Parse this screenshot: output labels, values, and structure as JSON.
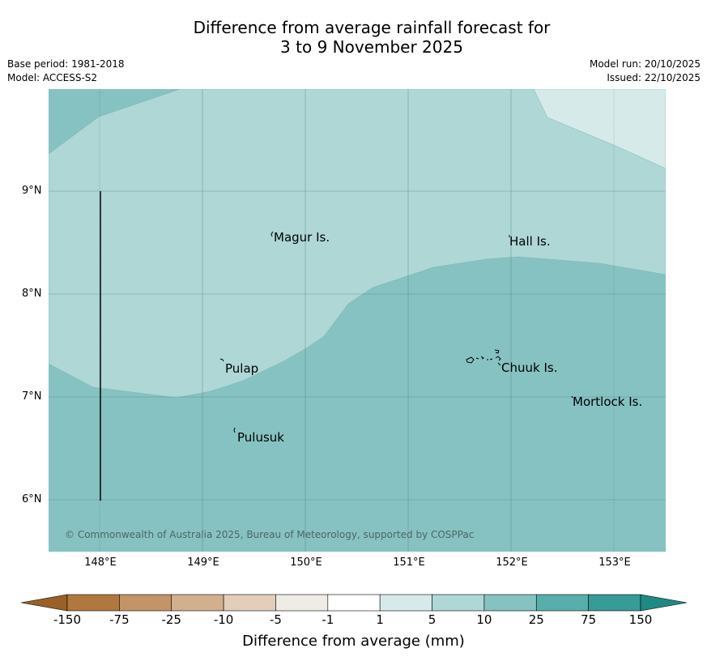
{
  "title_line1": "Difference from average rainfall forecast for",
  "title_line2": "3 to 9 November 2025",
  "base_period": "Base period: 1981-2018",
  "model": "Model: ACCESS-S2",
  "model_run": "Model run: 20/10/2025",
  "issued": "Issued: 22/10/2025",
  "map": {
    "lat_labels": [
      "9°N",
      "8°N",
      "7°N",
      "6°N"
    ],
    "lon_labels": [
      "148°E",
      "149°E",
      "150°E",
      "151°E",
      "152°E",
      "153°E"
    ],
    "places": [
      "Magur Is.",
      "Hall Is.",
      "Pulap",
      "Chuuk Is.",
      "Mortlock Is.",
      "Pulusuk"
    ],
    "credit": "© Commonwealth of Australia 2025, Bureau of Meteorology, supported by COSPPac"
  },
  "colorbar": {
    "ticks": [
      "-150",
      "-75",
      "-25",
      "-10",
      "-5",
      "-1",
      "1",
      "5",
      "10",
      "25",
      "75",
      "150"
    ],
    "colors": [
      "#b07840",
      "#c39468",
      "#d2b08e",
      "#e2cebb",
      "#efece5",
      "#ffffff",
      "#d6eaea",
      "#aed7d6",
      "#86c2c1",
      "#58aeaa",
      "#379b96"
    ],
    "under_color": "#996127",
    "over_color": "#1e8a84",
    "label": "Difference from average (mm)"
  }
}
